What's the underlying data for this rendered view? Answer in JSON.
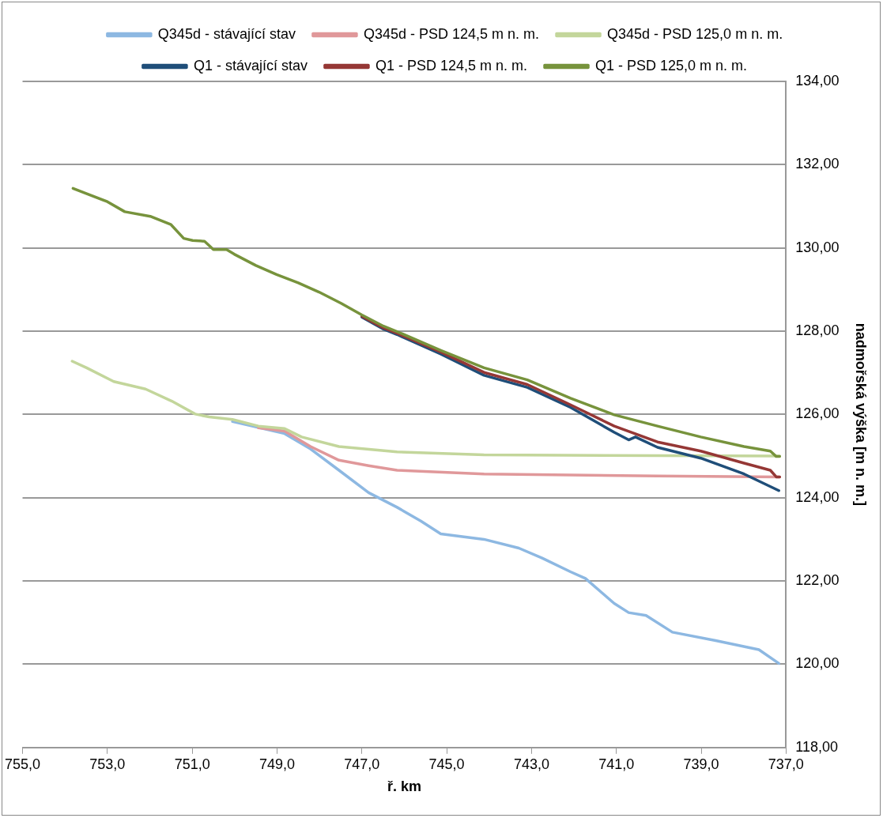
{
  "chart_data": {
    "type": "line",
    "xlabel": "ř. km",
    "ylabel": "nadmořská výška [m n. m.]",
    "xlim": [
      755,
      737
    ],
    "ylim": [
      118,
      134
    ],
    "xticks": [
      {
        "value": 755,
        "label": "755,0"
      },
      {
        "value": 753,
        "label": "753,0"
      },
      {
        "value": 751,
        "label": "751,0"
      },
      {
        "value": 749,
        "label": "749,0"
      },
      {
        "value": 747,
        "label": "747,0"
      },
      {
        "value": 745,
        "label": "745,0"
      },
      {
        "value": 743,
        "label": "743,0"
      },
      {
        "value": 741,
        "label": "741,0"
      },
      {
        "value": 739,
        "label": "739,0"
      },
      {
        "value": 737,
        "label": "737,0"
      }
    ],
    "yticks": [
      {
        "value": 118,
        "label": "118,00"
      },
      {
        "value": 120,
        "label": "120,00"
      },
      {
        "value": 122,
        "label": "122,00"
      },
      {
        "value": 124,
        "label": "124,00"
      },
      {
        "value": 126,
        "label": "126,00"
      },
      {
        "value": 128,
        "label": "128,00"
      },
      {
        "value": 130,
        "label": "130,00"
      },
      {
        "value": 132,
        "label": "132,00"
      },
      {
        "value": 134,
        "label": "134,00"
      }
    ],
    "grid": "y",
    "legend": "top",
    "marker": "none",
    "line_style": "solid",
    "series": [
      {
        "name": "Q345d - stávající stav",
        "color": "#8db8e2",
        "x": [
          750.05,
          748.82,
          748.21,
          747.54,
          746.84,
          746.17,
          745.61,
          745.14,
          744.12,
          743.3,
          742.75,
          742.08,
          741.73,
          741.05,
          740.71,
          740.3,
          739.68,
          738.66,
          737.64,
          737.17
        ],
        "values": [
          125.83,
          125.54,
          125.17,
          124.66,
          124.12,
          123.77,
          123.44,
          123.13,
          123.0,
          122.79,
          122.55,
          122.22,
          122.06,
          121.46,
          121.24,
          121.17,
          120.77,
          120.57,
          120.35,
          120.02
        ]
      },
      {
        "name": "Q345d - PSD 124,5 m n. m.",
        "color": "#e0989a",
        "x": [
          749.44,
          748.82,
          748.21,
          747.54,
          746.84,
          746.17,
          744.12,
          740.03,
          737.15
        ],
        "values": [
          125.68,
          125.6,
          125.23,
          124.9,
          124.77,
          124.66,
          124.57,
          124.52,
          124.5
        ]
      },
      {
        "name": "Q345d - PSD 125,0 m n. m.",
        "color": "#c3d69b",
        "x": [
          753.83,
          753.49,
          752.85,
          752.1,
          751.48,
          750.93,
          750.6,
          750.05,
          749.44,
          748.82,
          748.42,
          747.54,
          746.17,
          744.12,
          740.03,
          737.15
        ],
        "values": [
          127.28,
          127.12,
          126.79,
          126.61,
          126.32,
          126.01,
          125.94,
          125.88,
          125.72,
          125.66,
          125.46,
          125.23,
          125.1,
          125.03,
          125.01,
          125.0
        ]
      },
      {
        "name": "Q1 - stávající stav",
        "color": "#1f4e79",
        "x": [
          747.0,
          746.49,
          746.17,
          745.14,
          744.12,
          743.1,
          742.08,
          741.05,
          740.71,
          740.55,
          740.03,
          739.01,
          737.99,
          737.17
        ],
        "values": [
          128.34,
          128.05,
          127.92,
          127.45,
          126.94,
          126.65,
          126.17,
          125.57,
          125.39,
          125.46,
          125.21,
          124.95,
          124.57,
          124.17
        ]
      },
      {
        "name": "Q1 - PSD 124,5 m n. m.",
        "color": "#953735",
        "x": [
          747.0,
          746.49,
          746.17,
          745.14,
          744.12,
          743.1,
          742.08,
          741.05,
          740.03,
          739.01,
          737.99,
          737.37,
          737.23,
          737.15
        ],
        "values": [
          128.36,
          128.08,
          127.95,
          127.5,
          127.01,
          126.72,
          126.23,
          125.72,
          125.34,
          125.12,
          124.83,
          124.66,
          124.5,
          124.5
        ]
      },
      {
        "name": "Q1 - PSD 125,0 m n. m.",
        "color": "#77933c",
        "x": [
          753.81,
          753.51,
          753.0,
          752.59,
          751.99,
          751.5,
          751.2,
          750.99,
          750.71,
          750.5,
          750.19,
          750.01,
          749.5,
          749.01,
          748.5,
          748.01,
          747.49,
          747.0,
          746.49,
          746.17,
          745.14,
          744.12,
          743.1,
          742.08,
          741.05,
          740.03,
          739.01,
          737.99,
          737.37,
          737.23,
          737.15
        ],
        "values": [
          131.43,
          131.31,
          131.11,
          130.87,
          130.76,
          130.56,
          130.23,
          130.18,
          130.16,
          129.96,
          129.96,
          129.85,
          129.58,
          129.36,
          129.16,
          128.94,
          128.67,
          128.39,
          128.12,
          127.99,
          127.54,
          127.12,
          126.83,
          126.39,
          125.99,
          125.72,
          125.46,
          125.23,
          125.12,
          124.99,
          124.99
        ]
      }
    ]
  }
}
